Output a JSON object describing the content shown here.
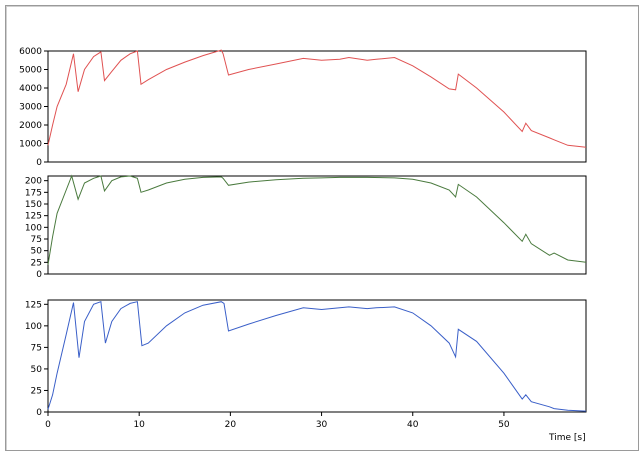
{
  "chart_data": [
    {
      "type": "line",
      "color": "#e05252",
      "ylim": [
        0,
        6000
      ],
      "yticks": [
        "0",
        "1000",
        "2000",
        "3000",
        "4000",
        "5000",
        "6000"
      ],
      "ytick_values": [
        0,
        1000,
        2000,
        3000,
        4000,
        5000,
        6000
      ],
      "x": [
        0,
        0.5,
        1,
        2,
        2.8,
        3.3,
        4,
        5,
        5.8,
        6.2,
        7,
        8,
        9,
        9.8,
        10.2,
        11,
        13,
        15,
        17,
        19,
        19.2,
        19.8,
        22,
        25,
        28,
        30,
        32,
        33,
        35,
        36,
        38,
        40,
        42,
        44,
        44.7,
        45,
        47,
        50,
        52,
        52.4,
        53,
        55,
        55.5,
        57,
        59
      ],
      "values": [
        900,
        2000,
        3000,
        4200,
        5850,
        3800,
        5000,
        5700,
        5950,
        4400,
        4900,
        5500,
        5850,
        6000,
        4200,
        4450,
        5000,
        5400,
        5750,
        6050,
        5850,
        4700,
        5000,
        5300,
        5600,
        5500,
        5550,
        5650,
        5500,
        5550,
        5650,
        5200,
        4600,
        3950,
        3900,
        4750,
        4000,
        2700,
        1650,
        2100,
        1700,
        1300,
        1200,
        900,
        800
      ]
    },
    {
      "type": "line",
      "color": "#4a7a3e",
      "ylim": [
        0,
        210
      ],
      "yticks": [
        "0",
        "25",
        "50",
        "75",
        "100",
        "125",
        "150",
        "175",
        "200"
      ],
      "ytick_values": [
        0,
        25,
        50,
        75,
        100,
        125,
        150,
        175,
        200
      ],
      "x": [
        0,
        0.5,
        1,
        2,
        2.6,
        3.3,
        4,
        5,
        5.8,
        6.2,
        7,
        8,
        9,
        9.8,
        10.2,
        11,
        13,
        15,
        17,
        19,
        19.2,
        19.8,
        22,
        25,
        28,
        30,
        32,
        35,
        38,
        40,
        42,
        44,
        44.7,
        45,
        47,
        50,
        52,
        52.4,
        53,
        55,
        55.5,
        57,
        59
      ],
      "values": [
        20,
        80,
        130,
        180,
        210,
        160,
        195,
        205,
        210,
        178,
        200,
        208,
        210,
        205,
        175,
        180,
        195,
        203,
        207,
        208,
        205,
        190,
        197,
        202,
        205,
        206,
        207,
        207,
        206,
        203,
        195,
        180,
        165,
        192,
        165,
        110,
        70,
        85,
        65,
        40,
        45,
        30,
        25
      ]
    },
    {
      "type": "line",
      "color": "#3a5fc8",
      "ylim": [
        0,
        130
      ],
      "yticks": [
        "0",
        "25",
        "50",
        "75",
        "100",
        "125"
      ],
      "ytick_values": [
        0,
        25,
        50,
        75,
        100,
        125
      ],
      "x": [
        0,
        0.5,
        1,
        2,
        2.8,
        3.4,
        4,
        5,
        5.8,
        6.3,
        7,
        8,
        9,
        9.8,
        10.3,
        11,
        13,
        15,
        17,
        19,
        19.3,
        19.8,
        22,
        25,
        28,
        30,
        32,
        33,
        35,
        36,
        38,
        40,
        42,
        44,
        44.7,
        45,
        47,
        50,
        51,
        52,
        52.4,
        53,
        55,
        55.5,
        57,
        59
      ],
      "values": [
        3,
        20,
        45,
        90,
        127,
        63,
        105,
        125,
        128,
        80,
        105,
        120,
        126,
        128,
        77,
        80,
        100,
        115,
        124,
        128,
        126,
        94,
        102,
        112,
        121,
        119,
        121,
        122,
        120,
        121,
        122,
        115,
        100,
        80,
        64,
        96,
        82,
        45,
        30,
        15,
        20,
        12,
        6,
        4,
        2,
        1
      ]
    }
  ],
  "x_axis": {
    "xlim": [
      0,
      59
    ],
    "ticks": [
      "0",
      "10",
      "20",
      "30",
      "40",
      "50"
    ],
    "tick_values": [
      0,
      10,
      20,
      30,
      40,
      50
    ],
    "label": "Time [s]"
  }
}
